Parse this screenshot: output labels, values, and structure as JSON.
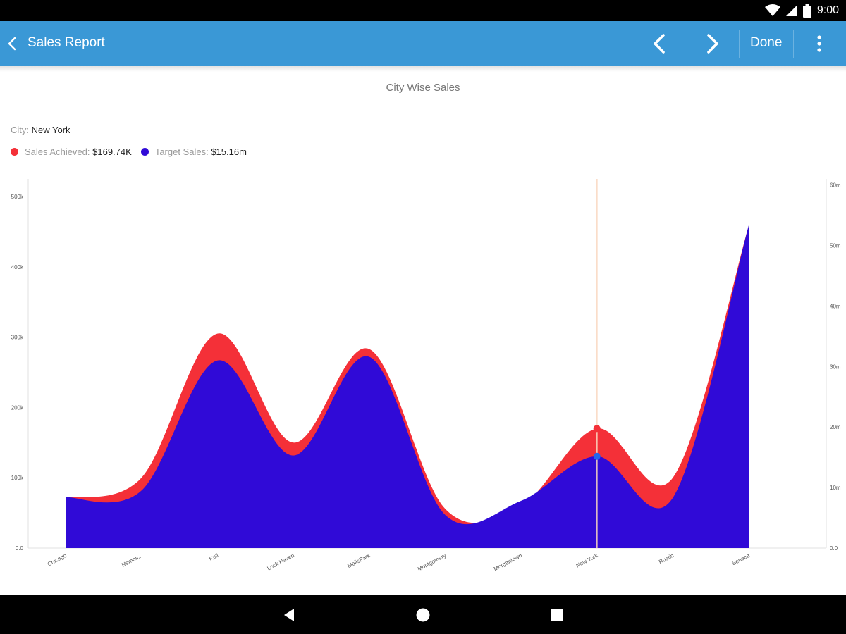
{
  "status_bar": {
    "time": "9:00",
    "icons": [
      "wifi-icon",
      "signal-icon",
      "battery-icon"
    ]
  },
  "app_bar": {
    "title": "Sales Report",
    "done_label": "Done",
    "icons": [
      "back-arrow-icon",
      "chevron-left-icon",
      "chevron-right-icon",
      "more-vert-icon"
    ]
  },
  "tooltip": {
    "city_label": "City:",
    "city_value": "New York",
    "series": [
      {
        "label": "Sales Achieved:",
        "value": "$169.74K"
      },
      {
        "label": "Target Sales:",
        "value": "$15.16m"
      }
    ]
  },
  "colors": {
    "app_bar": "#3a98d6",
    "sales_achieved": "#f43038",
    "target_sales": "#300ad7",
    "tracker": "#fad8c0"
  },
  "nav_bar": {
    "icons": [
      "back-triangle-icon",
      "home-circle-icon",
      "recents-square-icon"
    ]
  },
  "chart_data": {
    "type": "area",
    "title": "City Wise Sales",
    "categories": [
      "Chicago",
      "Nemos...",
      "Kull",
      "Lock Haven",
      "MelisPark",
      "Montgomery",
      "Morgantown",
      "New York",
      "Rustin",
      "Seneca"
    ],
    "series": [
      {
        "name": "Sales Achieved",
        "axis": "left",
        "values": [
          72,
          100,
          305,
          150,
          283,
          56,
          60,
          170,
          100,
          458
        ]
      },
      {
        "name": "Target Sales",
        "axis": "right",
        "values": [
          8.4,
          9.5,
          31.0,
          15.3,
          31.6,
          5.5,
          7.8,
          15.16,
          8.3,
          53.3
        ]
      }
    ],
    "y_left": {
      "range": [
        0,
        525
      ],
      "ticks": [
        0,
        100,
        200,
        300,
        400,
        500
      ],
      "tick_labels": [
        "0.0",
        "100k",
        "200k",
        "300k",
        "400k",
        "500k"
      ]
    },
    "y_right": {
      "range": [
        0,
        61
      ],
      "ticks": [
        0,
        10,
        20,
        30,
        40,
        50,
        60
      ],
      "tick_labels": [
        "0.0",
        "10m",
        "20m",
        "30m",
        "40m",
        "50m",
        "60m"
      ]
    },
    "selected_category": "New York",
    "grid": false,
    "legend": "tooltip top-left"
  }
}
